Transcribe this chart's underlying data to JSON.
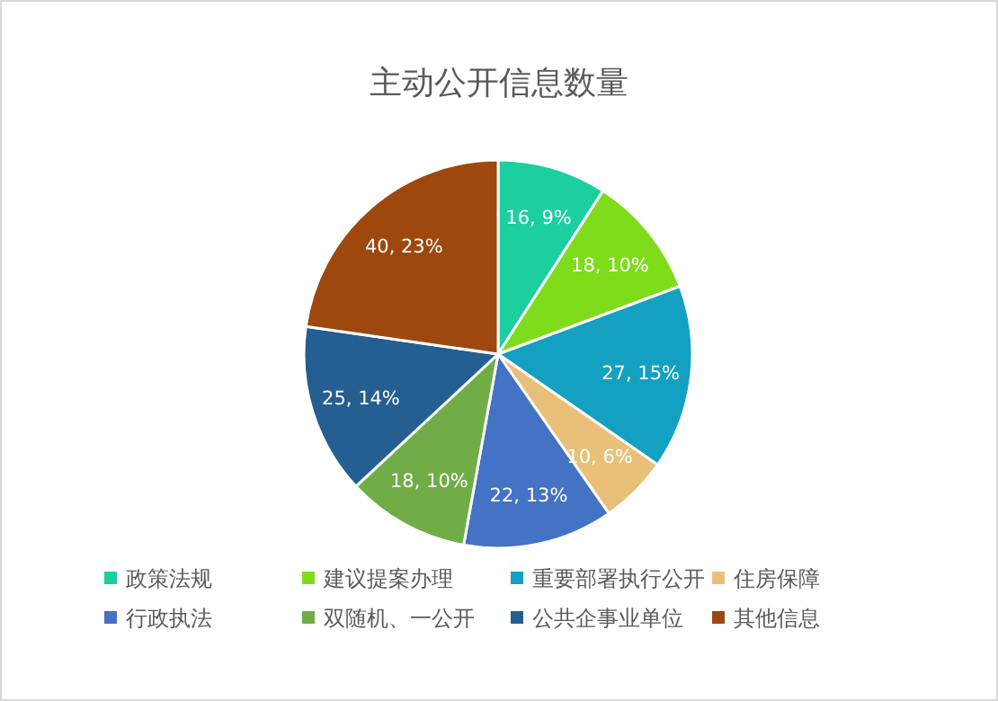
{
  "chart_data": {
    "type": "pie",
    "title": "主动公开信息数量",
    "categories": [
      "政策法规",
      "建议提案办理",
      "重要部署执行公开",
      "住房保障",
      "行政执法",
      "双随机、一公开",
      "公共企事业单位",
      "其他信息"
    ],
    "values": [
      16,
      18,
      27,
      10,
      22,
      18,
      25,
      40
    ],
    "value_labels": [
      "16, 9%",
      "18, 10%",
      "27, 15%",
      "10, 6%",
      "22, 13%",
      "18, 10%",
      "25, 14%",
      "40, 23%"
    ],
    "colors": [
      "#1bcf9f",
      "#7fdc1a",
      "#14a0c0",
      "#e8c07a",
      "#4472c4",
      "#70ad47",
      "#255e91",
      "#9e480e"
    ],
    "legend": "bottom"
  }
}
